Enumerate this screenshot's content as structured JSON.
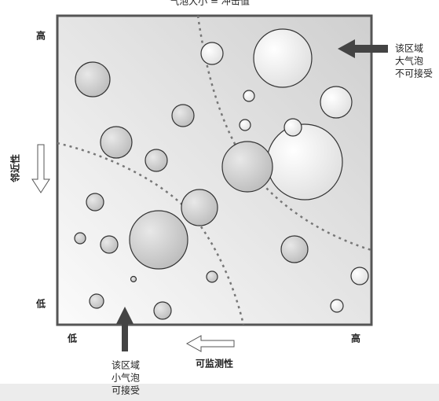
{
  "title": "气泡大小 = 冲击值",
  "y_axis": {
    "label": "邻近性",
    "high": "高",
    "low": "低"
  },
  "x_axis": {
    "label": "可监测性",
    "low": "低",
    "high": "高"
  },
  "note_top_right": [
    "该区域",
    "大气泡",
    "不可接受"
  ],
  "note_bottom": [
    "该区域",
    "小气泡",
    "可接受"
  ]
}
